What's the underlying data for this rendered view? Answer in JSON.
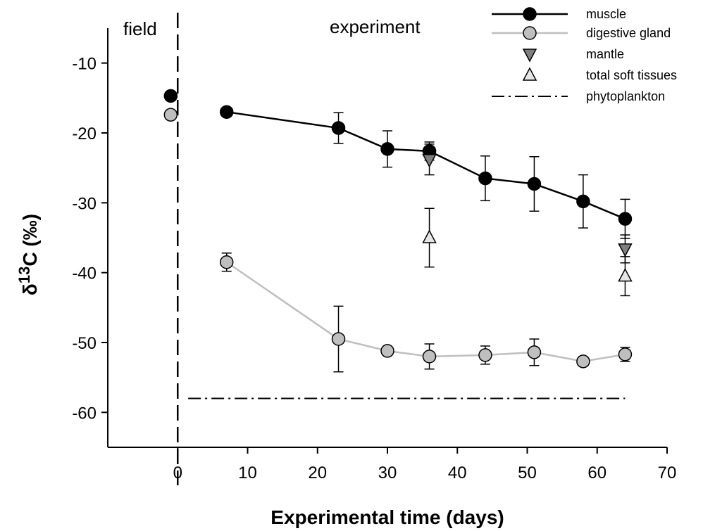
{
  "chart_data": {
    "type": "line",
    "xlabel": "Experimental time (days)",
    "ylabel": {
      "prefix": "δ",
      "superscript": "13",
      "suffix": "C (‰)"
    },
    "xlim": [
      -10,
      70
    ],
    "ylim": [
      -65,
      -5
    ],
    "xticks": [
      0,
      10,
      20,
      30,
      40,
      50,
      60,
      70
    ],
    "yticks": [
      -10,
      -20,
      -30,
      -40,
      -50,
      -60
    ],
    "annotations": {
      "field": "field",
      "experiment": "experiment"
    },
    "field_line_x": 0,
    "series": [
      {
        "name": "muscle",
        "style": "line-circle",
        "color": "#000000",
        "line_color": "#000000",
        "connected": true,
        "field_point": {
          "x": -1,
          "y": -14.7
        },
        "points": [
          {
            "x": 7,
            "y": -17.0,
            "err": 0.6
          },
          {
            "x": 23,
            "y": -19.3,
            "err": 2.2
          },
          {
            "x": 30,
            "y": -22.3,
            "err": 2.6
          },
          {
            "x": 36,
            "y": -22.6,
            "err": 1.3
          },
          {
            "x": 44,
            "y": -26.5,
            "err": 3.2
          },
          {
            "x": 51,
            "y": -27.3,
            "err": 3.9
          },
          {
            "x": 58,
            "y": -29.8,
            "err": 3.8
          },
          {
            "x": 64,
            "y": -32.3,
            "err": 2.8
          }
        ]
      },
      {
        "name": "digestive gland",
        "style": "line-circle",
        "color": "#bfbfbf",
        "line_color": "#bfbfbf",
        "connected": true,
        "field_point": {
          "x": -1,
          "y": -17.4
        },
        "points": [
          {
            "x": 7,
            "y": -38.5,
            "err": 1.3
          },
          {
            "x": 23,
            "y": -49.5,
            "err": 4.7
          },
          {
            "x": 30,
            "y": -51.2,
            "err": 0.4
          },
          {
            "x": 36,
            "y": -52.0,
            "err": 1.8
          },
          {
            "x": 44,
            "y": -51.8,
            "err": 1.3
          },
          {
            "x": 51,
            "y": -51.4,
            "err": 1.9
          },
          {
            "x": 58,
            "y": -52.7,
            "err": 0.5
          },
          {
            "x": 64,
            "y": -51.7,
            "err": 1.0
          }
        ]
      },
      {
        "name": "mantle",
        "style": "triangle-down",
        "color": "#7f7f7f",
        "connected": false,
        "points": [
          {
            "x": 36,
            "y": -23.8,
            "err": 2.2
          },
          {
            "x": 64,
            "y": -36.6,
            "err": 2.0
          }
        ]
      },
      {
        "name": "total soft tissues",
        "style": "triangle-up",
        "color": "#e6e6e6",
        "connected": false,
        "points": [
          {
            "x": 36,
            "y": -35.0,
            "err": 4.2
          },
          {
            "x": 64,
            "y": -40.5,
            "err": 2.8
          }
        ]
      },
      {
        "name": "phytoplankton",
        "style": "dash-dot",
        "color": "#000000",
        "connected": true,
        "points": [
          {
            "x": 1.5,
            "y": -58
          },
          {
            "x": 64,
            "y": -58
          }
        ]
      }
    ],
    "legend": {
      "position": "top-right",
      "entries": [
        "muscle",
        "digestive gland",
        "mantle",
        "total soft tissues",
        "phytoplankton"
      ]
    }
  }
}
